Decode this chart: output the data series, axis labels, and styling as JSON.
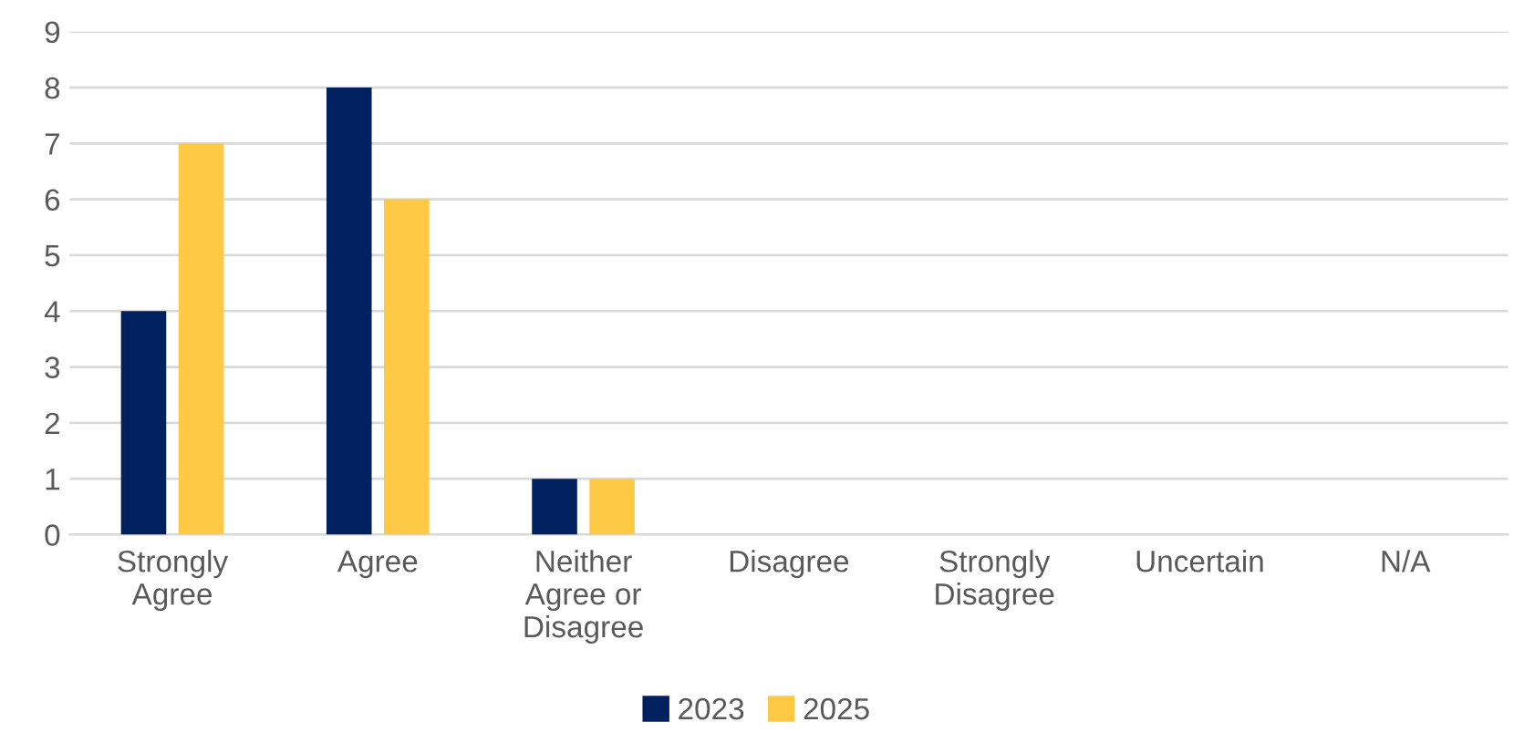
{
  "chart_data": {
    "type": "bar",
    "categories": [
      "Strongly Agree",
      "Agree",
      "Neither Agree or Disagree",
      "Disagree",
      "Strongly Disagree",
      "Uncertain",
      "N/A"
    ],
    "series": [
      {
        "name": "2023",
        "color": "#002060",
        "values": [
          4,
          8,
          1,
          0,
          0,
          0,
          0
        ]
      },
      {
        "name": "2025",
        "color": "#ffc845",
        "values": [
          7,
          6,
          1,
          0,
          0,
          0,
          0
        ]
      }
    ],
    "ylim": [
      0,
      9
    ],
    "yticks": [
      0,
      1,
      2,
      3,
      4,
      5,
      6,
      7,
      8,
      9
    ],
    "grid": "y",
    "legend": "bottom"
  }
}
